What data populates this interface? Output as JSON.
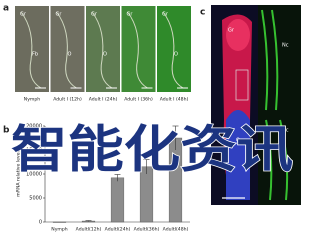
{
  "panel_labels": [
    "a",
    "b",
    "c"
  ],
  "panel_a": {
    "images": [
      {
        "label": "Nymph",
        "marks": [
          "Gr",
          "Fb"
        ]
      },
      {
        "label": "Adult Ⅰ (12h)",
        "marks": [
          "Gr",
          "O"
        ]
      },
      {
        "label": "Adult Ⅰ (24h)",
        "marks": [
          "Gr",
          "O"
        ]
      },
      {
        "label": "Adult Ⅰ (36h)",
        "marks": [
          "Gr"
        ]
      },
      {
        "label": "Adult Ⅰ (48h)",
        "marks": [
          "Gr",
          "O"
        ]
      }
    ]
  },
  "panel_c": {
    "marks": [
      "Gr",
      "Nc",
      "O",
      "Nc"
    ]
  },
  "watermark": "智能化资讯",
  "chart_data": {
    "type": "bar",
    "y_label": "mRNA relative level",
    "categories": [
      "Nymph",
      "AdultⅠ(12h)",
      "AdultⅠ(24h)",
      "AdultⅠ(36h)",
      "AdultⅠ(48h)"
    ],
    "values": [
      0,
      200,
      9200,
      11500,
      17500
    ],
    "errors": [
      0,
      100,
      700,
      1500,
      2500
    ],
    "color": "#8c8c8c",
    "ylim": [
      0,
      20000
    ],
    "yticks": [
      0,
      5000,
      10000,
      15000,
      20000
    ]
  }
}
